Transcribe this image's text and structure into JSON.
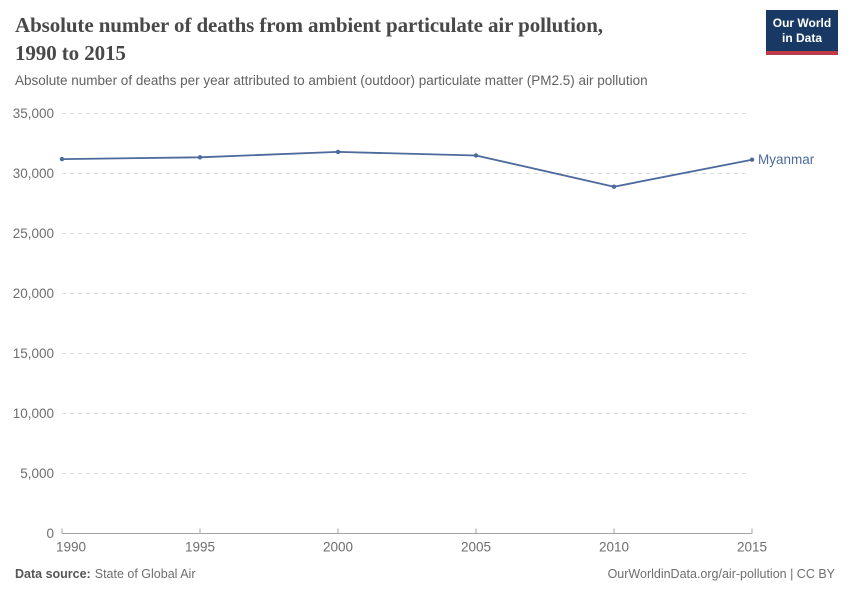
{
  "header": {
    "title_lines": [
      "Absolute number of deaths from ambient particulate air pollution,",
      "1990 to 2015"
    ],
    "subtitle": "Absolute number of deaths per year attributed to ambient (outdoor) particulate matter (PM2.5) air pollution"
  },
  "logo": {
    "line1": "Our World",
    "line2": "in Data"
  },
  "chart_data": {
    "type": "line",
    "title": "Absolute number of deaths from ambient particulate air pollution, 1990 to 2015",
    "x": [
      1990,
      1995,
      2000,
      2005,
      2010,
      2015
    ],
    "xtick_labels": [
      "1990",
      "1995",
      "2000",
      "2005",
      "2010",
      "2015"
    ],
    "series": [
      {
        "name": "Myanmar",
        "color": "#4C6A9C",
        "values": [
          31200,
          31350,
          31800,
          31500,
          28900,
          31150
        ]
      }
    ],
    "xlim": [
      1990,
      2015
    ],
    "ylim": [
      0,
      35000
    ],
    "ytick_values": [
      0,
      5000,
      10000,
      15000,
      20000,
      25000,
      30000,
      35000
    ],
    "ytick_labels": [
      "0",
      "5,000",
      "10,000",
      "15,000",
      "20,000",
      "25,000",
      "30,000",
      "35,000"
    ],
    "grid": "horizontal-dashed",
    "legend": "end-of-line-label"
  },
  "footer": {
    "source_label": "Data source:",
    "source_value": "State of Global Air",
    "license_text": "OurWorldinData.org/air-pollution | CC BY"
  },
  "colors": {
    "series_blue": "#4C6A9C",
    "logo_bg": "#183963",
    "logo_accent": "#bf3b48",
    "axis_text": "#6e6e6e",
    "gridline": "#dcdcdc",
    "axis_line": "#a3a3a3"
  }
}
